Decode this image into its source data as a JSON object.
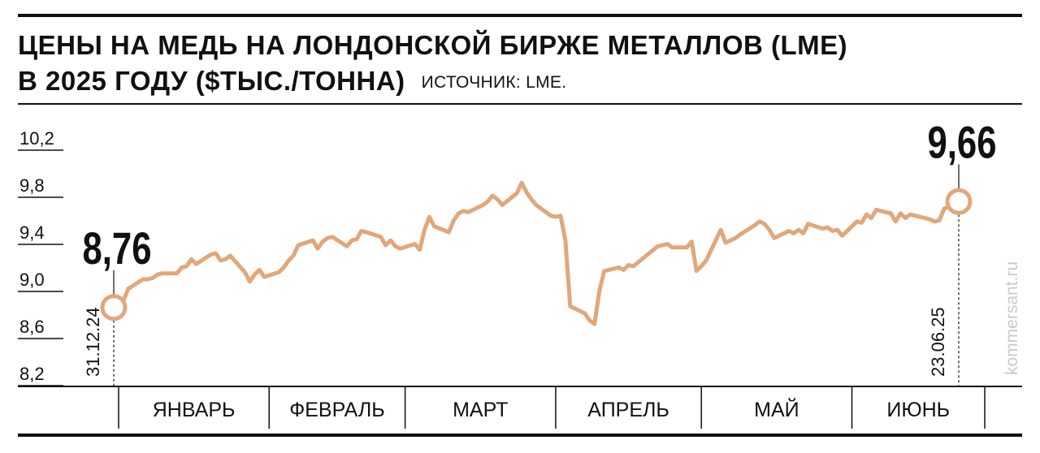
{
  "header": {
    "title_line1": "ЦЕНЫ НА МЕДЬ НА ЛОНДОНСКОЙ БИРЖЕ МЕТАЛЛОВ (LME)",
    "title_line2": "В 2025 ГОДУ ($ТЫС./ТОННА)",
    "source": "ИСТОЧНИК: LME."
  },
  "watermark": "kommersant.ru",
  "colors": {
    "line": "#e1a77a",
    "text": "#111111",
    "watermark": "#c9c9c9"
  },
  "chart_data": {
    "type": "line",
    "title": "ЦЕНЫ НА МЕДЬ НА ЛОНДОНСКОЙ БИРЖЕ МЕТАЛЛОВ (LME) В 2025 ГОДУ ($ТЫС./ТОННА)",
    "ylim": [
      8.2,
      10.2
    ],
    "yticks": [
      "8,2",
      "8,6",
      "9,0",
      "9,4",
      "9,8",
      "10,2"
    ],
    "ytick_values": [
      8.2,
      8.6,
      9.0,
      9.4,
      9.8,
      10.2
    ],
    "x_start": "2024-12-31",
    "x_end": "2025-06-23",
    "months": [
      {
        "label": "ЯНВАРЬ",
        "start": "2025-01-01",
        "end": "2025-01-31"
      },
      {
        "label": "ФЕВРАЛЬ",
        "start": "2025-02-01",
        "end": "2025-02-28"
      },
      {
        "label": "МАРТ",
        "start": "2025-03-01",
        "end": "2025-03-31"
      },
      {
        "label": "АПРЕЛЬ",
        "start": "2025-04-01",
        "end": "2025-04-30"
      },
      {
        "label": "МАЙ",
        "start": "2025-05-01",
        "end": "2025-05-31"
      },
      {
        "label": "ИЮНЬ",
        "start": "2025-06-01",
        "end": "2025-06-30"
      }
    ],
    "annotations": [
      {
        "date": "2024-12-31",
        "value": 8.76,
        "label": "8,76",
        "date_label": "31.12.24"
      },
      {
        "date": "2025-06-23",
        "value": 9.66,
        "label": "9,66",
        "date_label": "23.06.25"
      }
    ],
    "series": [
      {
        "points": [
          [
            "2024-12-31",
            8.76
          ],
          [
            "2025-01-02",
            8.82
          ],
          [
            "2025-01-03",
            8.92
          ],
          [
            "2025-01-06",
            9.0
          ],
          [
            "2025-01-07",
            9.0
          ],
          [
            "2025-01-08",
            9.01
          ],
          [
            "2025-01-09",
            9.04
          ],
          [
            "2025-01-10",
            9.05
          ],
          [
            "2025-01-13",
            9.05
          ],
          [
            "2025-01-14",
            9.1
          ],
          [
            "2025-01-15",
            9.11
          ],
          [
            "2025-01-16",
            9.17
          ],
          [
            "2025-01-17",
            9.13
          ],
          [
            "2025-01-20",
            9.21
          ],
          [
            "2025-01-21",
            9.22
          ],
          [
            "2025-01-22",
            9.16
          ],
          [
            "2025-01-23",
            9.17
          ],
          [
            "2025-01-24",
            9.2
          ],
          [
            "2025-01-27",
            9.06
          ],
          [
            "2025-01-28",
            8.98
          ],
          [
            "2025-01-29",
            9.04
          ],
          [
            "2025-01-30",
            9.08
          ],
          [
            "2025-01-31",
            9.02
          ],
          [
            "2025-02-03",
            9.06
          ],
          [
            "2025-02-04",
            9.1
          ],
          [
            "2025-02-05",
            9.16
          ],
          [
            "2025-02-06",
            9.2
          ],
          [
            "2025-02-07",
            9.29
          ],
          [
            "2025-02-10",
            9.33
          ],
          [
            "2025-02-11",
            9.26
          ],
          [
            "2025-02-12",
            9.32
          ],
          [
            "2025-02-13",
            9.35
          ],
          [
            "2025-02-14",
            9.36
          ],
          [
            "2025-02-17",
            9.28
          ],
          [
            "2025-02-18",
            9.33
          ],
          [
            "2025-02-19",
            9.34
          ],
          [
            "2025-02-20",
            9.41
          ],
          [
            "2025-02-21",
            9.4
          ],
          [
            "2025-02-24",
            9.36
          ],
          [
            "2025-02-25",
            9.29
          ],
          [
            "2025-02-26",
            9.33
          ],
          [
            "2025-02-27",
            9.28
          ],
          [
            "2025-02-28",
            9.26
          ],
          [
            "2025-03-03",
            9.3
          ],
          [
            "2025-03-04",
            9.25
          ],
          [
            "2025-03-05",
            9.42
          ],
          [
            "2025-03-06",
            9.53
          ],
          [
            "2025-03-07",
            9.45
          ],
          [
            "2025-03-10",
            9.4
          ],
          [
            "2025-03-11",
            9.5
          ],
          [
            "2025-03-12",
            9.56
          ],
          [
            "2025-03-13",
            9.58
          ],
          [
            "2025-03-14",
            9.57
          ],
          [
            "2025-03-17",
            9.63
          ],
          [
            "2025-03-18",
            9.66
          ],
          [
            "2025-03-19",
            9.71
          ],
          [
            "2025-03-20",
            9.68
          ],
          [
            "2025-03-21",
            9.63
          ],
          [
            "2025-03-24",
            9.73
          ],
          [
            "2025-03-25",
            9.82
          ],
          [
            "2025-03-26",
            9.74
          ],
          [
            "2025-03-27",
            9.68
          ],
          [
            "2025-03-28",
            9.63
          ],
          [
            "2025-03-31",
            9.54
          ],
          [
            "2025-04-01",
            9.53
          ],
          [
            "2025-04-02",
            9.54
          ],
          [
            "2025-04-03",
            9.33
          ],
          [
            "2025-04-04",
            8.77
          ],
          [
            "2025-04-07",
            8.71
          ],
          [
            "2025-04-08",
            8.65
          ],
          [
            "2025-04-09",
            8.62
          ],
          [
            "2025-04-10",
            8.9
          ],
          [
            "2025-04-11",
            9.07
          ],
          [
            "2025-04-14",
            9.1
          ],
          [
            "2025-04-15",
            9.08
          ],
          [
            "2025-04-16",
            9.12
          ],
          [
            "2025-04-17",
            9.11
          ],
          [
            "2025-04-22",
            9.28
          ],
          [
            "2025-04-23",
            9.29
          ],
          [
            "2025-04-24",
            9.3
          ],
          [
            "2025-04-25",
            9.27
          ],
          [
            "2025-04-28",
            9.27
          ],
          [
            "2025-04-29",
            9.32
          ],
          [
            "2025-04-30",
            9.07
          ],
          [
            "2025-05-01",
            9.11
          ],
          [
            "2025-05-02",
            9.16
          ],
          [
            "2025-05-05",
            9.42
          ],
          [
            "2025-05-06",
            9.31
          ],
          [
            "2025-05-07",
            9.33
          ],
          [
            "2025-05-08",
            9.35
          ],
          [
            "2025-05-09",
            9.38
          ],
          [
            "2025-05-12",
            9.46
          ],
          [
            "2025-05-13",
            9.49
          ],
          [
            "2025-05-14",
            9.47
          ],
          [
            "2025-05-15",
            9.42
          ],
          [
            "2025-05-16",
            9.35
          ],
          [
            "2025-05-19",
            9.41
          ],
          [
            "2025-05-20",
            9.39
          ],
          [
            "2025-05-21",
            9.42
          ],
          [
            "2025-05-22",
            9.39
          ],
          [
            "2025-05-23",
            9.47
          ],
          [
            "2025-05-26",
            9.43
          ],
          [
            "2025-05-27",
            9.44
          ],
          [
            "2025-05-28",
            9.41
          ],
          [
            "2025-05-29",
            9.42
          ],
          [
            "2025-05-30",
            9.37
          ],
          [
            "2025-06-02",
            9.49
          ],
          [
            "2025-06-03",
            9.48
          ],
          [
            "2025-06-04",
            9.55
          ],
          [
            "2025-06-05",
            9.52
          ],
          [
            "2025-06-06",
            9.59
          ],
          [
            "2025-06-09",
            9.56
          ],
          [
            "2025-06-10",
            9.49
          ],
          [
            "2025-06-11",
            9.56
          ],
          [
            "2025-06-12",
            9.52
          ],
          [
            "2025-06-13",
            9.55
          ],
          [
            "2025-06-16",
            9.52
          ],
          [
            "2025-06-17",
            9.51
          ],
          [
            "2025-06-18",
            9.49
          ],
          [
            "2025-06-19",
            9.5
          ],
          [
            "2025-06-20",
            9.6
          ],
          [
            "2025-06-23",
            9.66
          ]
        ]
      }
    ]
  }
}
